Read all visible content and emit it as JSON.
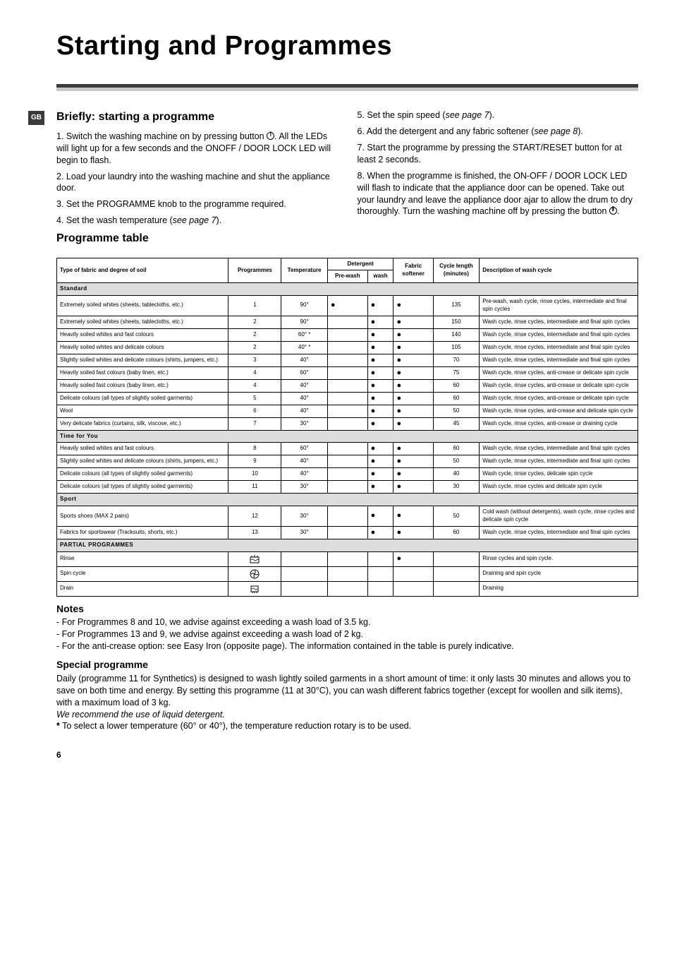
{
  "title": "Starting and Programmes",
  "badge": "GB",
  "left": {
    "heading": "Briefly: starting a programme",
    "steps": [
      "1. Switch the washing machine on by pressing button ⏻. All the LEDs will light up for a few seconds and the ONOFF / DOOR LOCK LED will begin to flash.",
      "2. Load your laundry into the washing machine and shut the appliance door.",
      "3. Set the PROGRAMME knob to the programme required.",
      "4. Set the wash temperature (see page 7)."
    ],
    "table_heading": "Programme table"
  },
  "right": {
    "steps": [
      "5. Set the spin speed (see page 7).",
      "6. Add the detergent and any fabric softener (see page 8).",
      "7. Start the programme by pressing the START/RESET button for at least 2 seconds.",
      "8. When the programme is finished, the ON-OFF / DOOR LOCK LED will flash to indicate that the appliance door can be opened. Take out your laundry and leave the appliance door ajar to allow the drum to dry thoroughly. Turn the washing machine off by pressing the button ⏻."
    ]
  },
  "table": {
    "headers": {
      "fabric": "Type of fabric and degree of soil",
      "prog": "Programmes",
      "temp": "Temperature",
      "detergent": "Detergent",
      "prewash": "Pre-wash",
      "wash": "wash",
      "softener": "Fabric softener",
      "length": "Cycle length (minutes)",
      "desc": "Description of wash cycle"
    },
    "sections": [
      {
        "name": "Standard",
        "rows": [
          {
            "fabric": "Extremely soiled whites (sheets, tablecloths, etc.)",
            "prog": "1",
            "temp": "90°",
            "pre": "●",
            "wash": "●",
            "soft": "●",
            "len": "135",
            "desc": "Pre-wash, wash cycle, rinse cycles, intermediate and final spin cycles"
          },
          {
            "fabric": "Extremely soiled whites (sheets, tablecloths, etc.)",
            "prog": "2",
            "temp": "90°",
            "pre": "",
            "wash": "●",
            "soft": "●",
            "len": "150",
            "desc": "Wash cycle, rinse cycles, intermediate and final spin cycles"
          },
          {
            "fabric": "Heavily soiled whites and fast colours",
            "prog": "2",
            "temp": "60° *",
            "pre": "",
            "wash": "●",
            "soft": "●",
            "len": "140",
            "desc": "Wash cycle, rinse cycles, intermediate and final spin cycles"
          },
          {
            "fabric": "Heavily soiled whites and delicate colours",
            "prog": "2",
            "temp": "40° *",
            "pre": "",
            "wash": "●",
            "soft": "●",
            "len": "105",
            "desc": "Wash cycle, rinse cycles, intermediate and final spin cycles"
          },
          {
            "fabric": "Slightly soiled whites and delicate colours (shirts, jumpers, etc.)",
            "prog": "3",
            "temp": "40°",
            "pre": "",
            "wash": "●",
            "soft": "●",
            "len": "70",
            "desc": "Wash cycle, rinse cycles, intermediate and final spin cycles"
          },
          {
            "fabric": "Heavily soiled fast colours (baby linen, etc.)",
            "prog": "4",
            "temp": "60°",
            "pre": "",
            "wash": "●",
            "soft": "●",
            "len": "75",
            "desc": "Wash cycle, rinse cycles, anti-crease or delicate spin cycle"
          },
          {
            "fabric": "Heavily soiled fast colours (baby linen, etc.)",
            "prog": "4",
            "temp": "40°",
            "pre": "",
            "wash": "●",
            "soft": "●",
            "len": "60",
            "desc": "Wash cycle, rinse cycles, anti-crease or delicate spin cycle"
          },
          {
            "fabric": "Delicate colours (all types of slightly soiled garments)",
            "prog": "5",
            "temp": "40°",
            "pre": "",
            "wash": "●",
            "soft": "●",
            "len": "60",
            "desc": "Wash cycle, rinse cycles, anti-crease or delicate spin cycle"
          },
          {
            "fabric": "Wool",
            "prog": "6",
            "temp": "40°",
            "pre": "",
            "wash": "●",
            "soft": "●",
            "len": "50",
            "desc": "Wash cycle, rinse cycles, anti-crease and delicate spin cycle"
          },
          {
            "fabric": "Very delicate fabrics (curtains, silk, viscose, etc.)",
            "prog": "7",
            "temp": "30°",
            "pre": "",
            "wash": "●",
            "soft": "●",
            "len": "45",
            "desc": "Wash cycle, rinse cycles, anti-crease or draining cycle"
          }
        ]
      },
      {
        "name": "Time for You",
        "rows": [
          {
            "fabric": "Heavily soiled whites and fast colours",
            "prog": "8",
            "temp": "60°",
            "pre": "",
            "wash": "●",
            "soft": "●",
            "len": "60",
            "desc": "Wash cycle, rinse cycles, intermediate and final spin cycles"
          },
          {
            "fabric": "Slightly soiled whites and delicate colours (shirts, jumpers, etc.)",
            "prog": "9",
            "temp": "40°",
            "pre": "",
            "wash": "●",
            "soft": "●",
            "len": "50",
            "desc": "Wash cycle, rinse cycles, intermediate and final spin cycles"
          },
          {
            "fabric": "Delicate colours (all types of slightly soiled garments)",
            "prog": "10",
            "temp": "40°",
            "pre": "",
            "wash": "●",
            "soft": "●",
            "len": "40",
            "desc": "Wash cycle, rinse cycles, delicate spin cycle"
          },
          {
            "fabric": "Delicate colours (all types of slightly soiled garments)",
            "prog": "11",
            "temp": "30°",
            "pre": "",
            "wash": "●",
            "soft": "●",
            "len": "30",
            "desc": "Wash cycle, rinse cycles and delicate spin cycle"
          }
        ]
      },
      {
        "name": "Sport",
        "rows": [
          {
            "fabric": "Sports shoes (MAX 2 pairs)",
            "prog": "12",
            "temp": "30°",
            "pre": "",
            "wash": "●",
            "soft": "●",
            "len": "50",
            "desc": "Cold wash (without detergents), wash cycle, rinse cycles and delicate spin cycle"
          },
          {
            "fabric": "Fabrics for sportswear (Tracksuits, shorts, etc.)",
            "prog": "13",
            "temp": "30°",
            "pre": "",
            "wash": "●",
            "soft": "●",
            "len": "60",
            "desc": "Wash cycle, rinse cycles, intermediate and final spin cycles"
          }
        ]
      },
      {
        "name": "PARTIAL PROGRAMMES",
        "rows": [
          {
            "fabric": "Rinse",
            "prog": "icon:rinse",
            "temp": "",
            "pre": "",
            "wash": "",
            "soft": "●",
            "len": "",
            "desc": "Rinse cycles and spin cycle."
          },
          {
            "fabric": "Spin cycle",
            "prog": "icon:spin",
            "temp": "",
            "pre": "",
            "wash": "",
            "soft": "",
            "len": "",
            "desc": "Draining and spin cycle"
          },
          {
            "fabric": "Drain",
            "prog": "icon:drain",
            "temp": "",
            "pre": "",
            "wash": "",
            "soft": "",
            "len": "",
            "desc": "Draining"
          }
        ]
      }
    ]
  },
  "notes": {
    "heading": "Notes",
    "lines": [
      "- For Programmes 8 and 10, we advise against exceeding a wash load of 3.5 kg.",
      "- For Programmes 13 and 9, we advise against exceeding a wash load of 2 kg.",
      "- For the anti-crease option: see Easy Iron (opposite page). The information contained in the table is purely indicative."
    ]
  },
  "special": {
    "heading": "Special programme",
    "body1": "Daily (programme 11 for Synthetics) is designed to wash lightly soiled garments in a short amount of time: it only lasts 30 minutes and allows you to save on both time and energy. By setting this programme (11 at 30°C), you can wash different fabrics together (except for woollen and silk items), with a maximum load of 3 kg.",
    "body_em": "We recommend the use of liquid detergent.",
    "body2": "* To select a lower temperature (60° or 40°), the temperature reduction rotary is to be used."
  },
  "pagenum": "6"
}
